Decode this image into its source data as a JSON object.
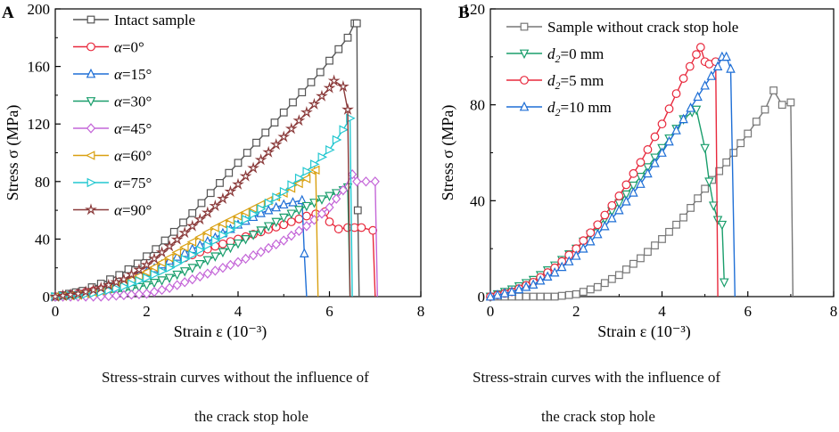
{
  "chart_data": [
    {
      "panel_label": "A",
      "type": "line",
      "xlabel": "Strain ε (10⁻³)",
      "ylabel": "Stress σ (MPa)",
      "xlim": [
        0,
        8
      ],
      "ylim": [
        0,
        200
      ],
      "xticks": [
        "0",
        "2",
        "4",
        "6",
        "8"
      ],
      "yticks": [
        "0",
        "40",
        "80",
        "120",
        "160",
        "200"
      ],
      "legend_position": "top-left",
      "caption_line1": "Stress-strain curves without the influence of",
      "caption_line2": "the crack stop hole",
      "series": [
        {
          "name": "Intact sample",
          "label_prefix": "",
          "label_suffix": "Intact sample",
          "marker": "square",
          "color": "#555555",
          "x": [
            0,
            0.3,
            0.6,
            1,
            1.4,
            1.8,
            2.2,
            2.6,
            3,
            3.4,
            3.8,
            4.2,
            4.6,
            5,
            5.4,
            5.8,
            6.2,
            6.4,
            6.55,
            6.6,
            6.62,
            6.65
          ],
          "y": [
            0,
            2,
            4,
            9,
            15,
            23,
            33,
            45,
            58,
            72,
            86,
            100,
            114,
            128,
            142,
            156,
            172,
            180,
            190,
            190,
            60,
            0
          ]
        },
        {
          "name": "α=0°",
          "label_prefix": "α",
          "label_suffix": "=0°",
          "marker": "circle",
          "color": "#e8283c",
          "x": [
            0,
            0.5,
            1,
            1.5,
            2,
            2.5,
            3,
            3.5,
            4,
            4.5,
            5,
            5.5,
            5.9,
            6,
            6.2,
            6.4,
            6.7,
            6.95,
            7.0
          ],
          "y": [
            0,
            2,
            5,
            10,
            16,
            23,
            29,
            35,
            40,
            45,
            50,
            56,
            59,
            52,
            47,
            48,
            48,
            46,
            0
          ]
        },
        {
          "name": "α=15°",
          "label_prefix": "α",
          "label_suffix": "=15°",
          "marker": "triangle-up",
          "color": "#1f6fd6",
          "x": [
            0,
            0.5,
            1,
            1.5,
            2,
            2.5,
            3,
            3.5,
            4,
            4.5,
            5,
            5.4,
            5.45,
            5.5
          ],
          "y": [
            0,
            2,
            5,
            10,
            17,
            25,
            33,
            41,
            50,
            58,
            64,
            67,
            30,
            0
          ]
        },
        {
          "name": "α=30°",
          "label_prefix": "α",
          "label_suffix": "=30°",
          "marker": "triangle-down",
          "color": "#1a9e6c",
          "x": [
            0,
            0.5,
            1,
            1.5,
            2,
            2.5,
            3,
            3.5,
            4,
            4.5,
            5,
            5.5,
            6,
            6.3,
            6.4,
            6.45
          ],
          "y": [
            0,
            1,
            2,
            4,
            8,
            13,
            20,
            28,
            37,
            46,
            55,
            63,
            70,
            74,
            76,
            0
          ]
        },
        {
          "name": "α=45°",
          "label_prefix": "α",
          "label_suffix": "=45°",
          "marker": "diamond",
          "color": "#c466d8",
          "x": [
            0,
            1,
            2,
            2.5,
            3,
            3.5,
            4,
            4.5,
            5,
            5.5,
            6,
            6.3,
            6.5,
            6.6,
            6.8,
            7.0,
            7.05
          ],
          "y": [
            0,
            0,
            2,
            6,
            12,
            18,
            24,
            31,
            39,
            49,
            62,
            74,
            85,
            80,
            80,
            80,
            0
          ]
        },
        {
          "name": "α=60°",
          "label_prefix": "α",
          "label_suffix": "=60°",
          "marker": "triangle-left",
          "color": "#d9a010",
          "x": [
            0,
            0.5,
            1,
            1.5,
            2,
            2.5,
            3,
            3.5,
            4,
            4.5,
            5,
            5.5,
            5.6,
            5.7,
            5.75
          ],
          "y": [
            0,
            1,
            4,
            9,
            17,
            27,
            38,
            48,
            56,
            64,
            72,
            82,
            88,
            88,
            0
          ]
        },
        {
          "name": "α=75°",
          "label_prefix": "α",
          "label_suffix": "=75°",
          "marker": "triangle-right",
          "color": "#22c7d0",
          "x": [
            0,
            0.5,
            1,
            1.5,
            2,
            2.5,
            3,
            3.5,
            4,
            4.5,
            5,
            5.5,
            6,
            6.3,
            6.45,
            6.5
          ],
          "y": [
            0,
            1,
            3,
            7,
            13,
            20,
            29,
            39,
            50,
            61,
            73,
            87,
            102,
            116,
            124,
            0
          ]
        },
        {
          "name": "α=90°",
          "label_prefix": "α",
          "label_suffix": "=90°",
          "marker": "star",
          "color": "#8a3a3a",
          "x": [
            0,
            0.5,
            1,
            1.5,
            2,
            2.5,
            3,
            3.5,
            4,
            4.5,
            5,
            5.5,
            6,
            6.1,
            6.3,
            6.4,
            6.45
          ],
          "y": [
            0,
            2,
            6,
            12,
            22,
            35,
            49,
            63,
            78,
            95,
            111,
            128,
            145,
            150,
            146,
            130,
            0
          ]
        }
      ]
    },
    {
      "panel_label": "B",
      "type": "line",
      "xlabel": "Strain ε (10⁻³)",
      "ylabel": "Stress σ (MPa)",
      "xlim": [
        0,
        8
      ],
      "ylim": [
        0,
        120
      ],
      "xticks": [
        "0",
        "2",
        "4",
        "6",
        "8"
      ],
      "yticks": [
        "0",
        "40",
        "80",
        "120"
      ],
      "legend_position": "top-left",
      "caption_line1": "Stress-strain curves with the influence of",
      "caption_line2": "the crack stop hole",
      "series": [
        {
          "name": "Sample without crack stop hole",
          "label_prefix": "",
          "label_suffix": "Sample without crack stop hole",
          "marker": "square",
          "color": "#777777",
          "x": [
            0,
            0.5,
            1,
            1.5,
            2,
            2.5,
            3,
            3.5,
            4,
            4.5,
            5,
            5.5,
            6,
            6.4,
            6.6,
            6.8,
            7.0,
            7.05
          ],
          "y": [
            0,
            0,
            0,
            0,
            1,
            4,
            9,
            16,
            24,
            33,
            45,
            56,
            68,
            78,
            86,
            80,
            81,
            0
          ]
        },
        {
          "name": "d2=0 mm",
          "label_prefix": "d",
          "label_sub": "2",
          "label_suffix": "=0 mm",
          "marker": "triangle-down",
          "color": "#1a9e6c",
          "x": [
            0,
            0.5,
            1,
            1.5,
            2,
            2.5,
            3,
            3.5,
            4,
            4.5,
            4.7,
            4.8,
            5.0,
            5.1,
            5.2,
            5.3,
            5.4,
            5.45
          ],
          "y": [
            0,
            3,
            7,
            13,
            20,
            29,
            39,
            50,
            62,
            74,
            77,
            78,
            62,
            48,
            38,
            32,
            30,
            6
          ]
        },
        {
          "name": "d2=5 mm",
          "label_prefix": "d",
          "label_sub": "2",
          "label_suffix": "=5 mm",
          "marker": "circle",
          "color": "#e8283c",
          "x": [
            0,
            0.5,
            1,
            1.5,
            2,
            2.5,
            3,
            3.5,
            4,
            4.5,
            4.8,
            4.9,
            5.0,
            5.1,
            5.25,
            5.3
          ],
          "y": [
            0,
            2,
            6,
            12,
            20,
            30,
            42,
            56,
            72,
            91,
            101,
            104,
            98,
            97,
            98,
            0
          ]
        },
        {
          "name": "d2=10 mm",
          "label_prefix": "d",
          "label_sub": "2",
          "label_suffix": "=10 mm",
          "marker": "triangle-up",
          "color": "#1f6fd6",
          "x": [
            0,
            0.5,
            1,
            1.5,
            2,
            2.5,
            3,
            3.5,
            4,
            4.5,
            5,
            5.3,
            5.4,
            5.5,
            5.6,
            5.7
          ],
          "y": [
            0,
            2,
            5,
            10,
            17,
            26,
            36,
            47,
            60,
            74,
            88,
            96,
            100,
            100,
            95,
            0
          ]
        }
      ]
    }
  ]
}
